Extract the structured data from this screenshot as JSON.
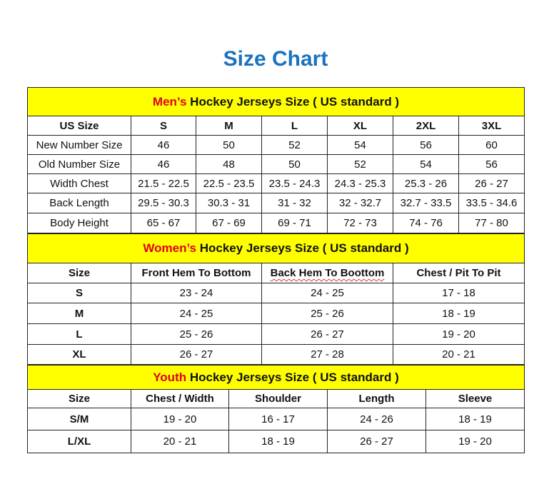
{
  "title": "Size Chart",
  "colors": {
    "title": "#1b72c0",
    "section_bg": "#ffff00",
    "highlight": "#e0001b"
  },
  "sections": [
    {
      "highlight": "Men’s",
      "rest": " Hockey Jerseys Size ( US standard )",
      "header": [
        "US Size",
        "S",
        "M",
        "L",
        "XL",
        "2XL",
        "3XL"
      ],
      "rows": [
        [
          "New Number Size",
          "46",
          "50",
          "52",
          "54",
          "56",
          "60"
        ],
        [
          "Old Number Size",
          "46",
          "48",
          "50",
          "52",
          "54",
          "56"
        ],
        [
          "Width Chest",
          "21.5 - 22.5",
          "22.5 - 23.5",
          "23.5 - 24.3",
          "24.3 - 25.3",
          "25.3 - 26",
          "26 - 27"
        ],
        [
          "Back Length",
          "29.5 - 30.3",
          "30.3 - 31",
          "31 - 32",
          "32 - 32.7",
          "32.7 - 33.5",
          "33.5 - 34.6"
        ],
        [
          "Body Height",
          "65 - 67",
          "67 - 69",
          "69 - 71",
          "72 - 73",
          "74 - 76",
          "77 - 80"
        ]
      ]
    },
    {
      "highlight": "Women’s",
      "rest": " Hockey Jerseys Size ( US standard )",
      "header": [
        "Size",
        "Front Hem To Bottom",
        "Back Hem To Boottom",
        "Chest / Pit To Pit"
      ],
      "rows": [
        [
          "S",
          "23 - 24",
          "24 - 25",
          "17 - 18"
        ],
        [
          "M",
          "24 - 25",
          "25 - 26",
          "18 - 19"
        ],
        [
          "L",
          "25 - 26",
          "26 - 27",
          "19 - 20"
        ],
        [
          "XL",
          "26 - 27",
          "27 - 28",
          "20 - 21"
        ]
      ]
    },
    {
      "highlight": "Youth",
      "rest": " Hockey Jerseys Size ( US standard )",
      "header": [
        "Size",
        "Chest / Width",
        "Shoulder",
        "Length",
        "Sleeve"
      ],
      "rows": [
        [
          "S/M",
          "19 - 20",
          "16 - 17",
          "24 - 26",
          "18 - 19"
        ],
        [
          "L/XL",
          "20 - 21",
          "18 - 19",
          "26 - 27",
          "19 - 20"
        ]
      ]
    }
  ]
}
